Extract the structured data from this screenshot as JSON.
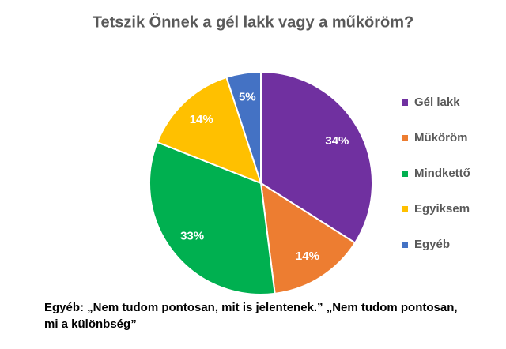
{
  "chart_data": {
    "type": "pie",
    "title": "Tetszik Önnek a gél lakk vagy a műköröm?",
    "categories": [
      "Gél lakk",
      "Műköröm",
      "Mindkettő",
      "Egyiksem",
      "Egyéb"
    ],
    "values": [
      34,
      14,
      33,
      14,
      5
    ],
    "value_labels": [
      "34%",
      "14%",
      "33%",
      "14%",
      "5%"
    ],
    "colors": [
      "#7030a0",
      "#ed7d31",
      "#00b050",
      "#ffc000",
      "#4472c4"
    ],
    "legend": "right",
    "annotation": [
      "Egyéb: „Nem tudom pontosan, mit is jelentenek.” „Nem tudom pontosan,",
      "mi a különbség”"
    ]
  }
}
